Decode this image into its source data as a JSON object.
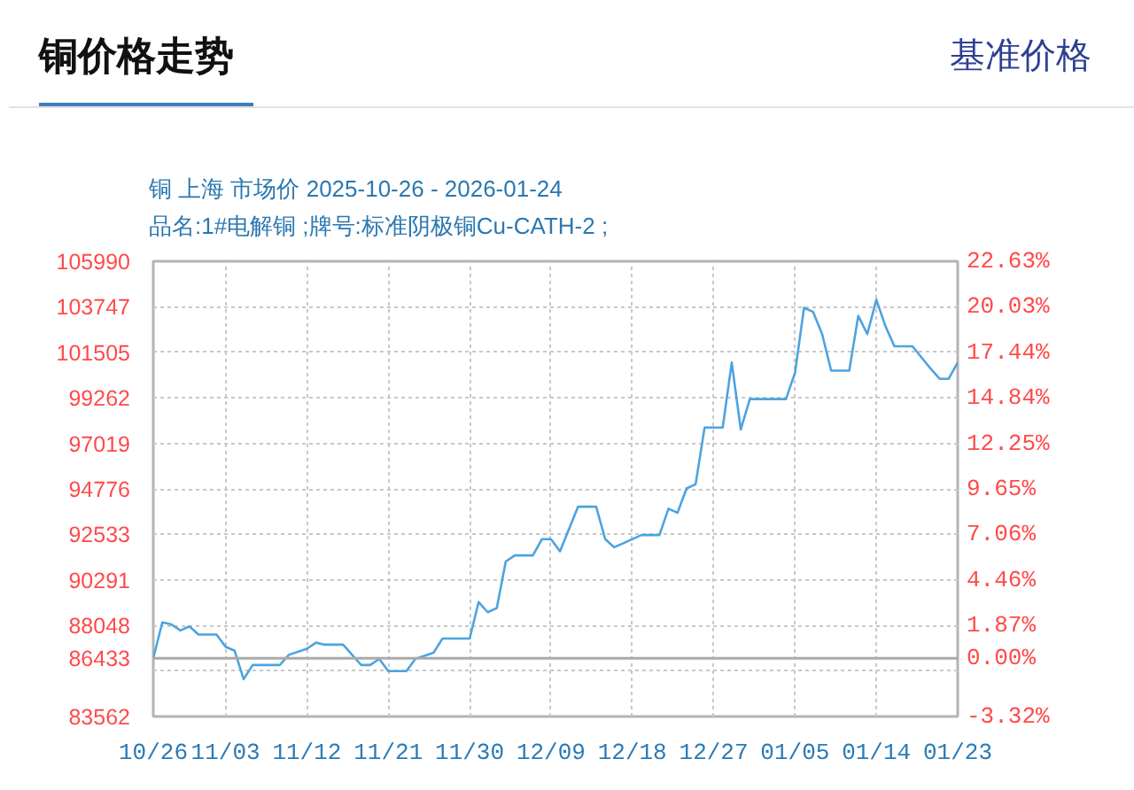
{
  "chart_data": {
    "type": "line",
    "title": "铜价格走势",
    "subtitle": "铜 上海 市场价 2025-10-26 - 2026-01-24\n品名:1#电解铜 ;牌号:标准阴极铜Cu-CATH-2 ;",
    "annotations": [
      "基准价格"
    ],
    "x": [
      "2025-10-26",
      "2025-10-27",
      "2025-10-28",
      "2025-10-29",
      "2025-10-30",
      "2025-10-31",
      "2025-11-02",
      "2025-11-03",
      "2025-11-04",
      "2025-11-05",
      "2025-11-06",
      "2025-11-09",
      "2025-11-10",
      "2025-11-12",
      "2025-11-13",
      "2025-11-14",
      "2025-11-16",
      "2025-11-18",
      "2025-11-19",
      "2025-11-20",
      "2025-11-21",
      "2025-11-23",
      "2025-11-24",
      "2025-11-26",
      "2025-11-27",
      "2025-11-30",
      "2025-12-01",
      "2025-12-02",
      "2025-12-03",
      "2025-12-04",
      "2025-12-05",
      "2025-12-07",
      "2025-12-08",
      "2025-12-09",
      "2025-12-10",
      "2025-12-12",
      "2025-12-14",
      "2025-12-15",
      "2025-12-16",
      "2025-12-17",
      "2025-12-19",
      "2025-12-21",
      "2025-12-22",
      "2025-12-23",
      "2025-12-24",
      "2025-12-25",
      "2025-12-26",
      "2025-12-28",
      "2025-12-29",
      "2025-12-30",
      "2025-12-31",
      "2026-01-04",
      "2026-01-05",
      "2026-01-06",
      "2026-01-07",
      "2026-01-08",
      "2026-01-09",
      "2026-01-11",
      "2026-01-12",
      "2026-01-13",
      "2026-01-14",
      "2026-01-15",
      "2026-01-16",
      "2026-01-18",
      "2026-01-20",
      "2026-01-21",
      "2026-01-22",
      "2026-01-23"
    ],
    "series": [
      {
        "color": "#4da3de",
        "values": [
          86433,
          88200,
          88100,
          87800,
          88000,
          87600,
          87600,
          87000,
          86800,
          85400,
          86100,
          86100,
          86600,
          86900,
          87200,
          87100,
          87100,
          86100,
          86100,
          86400,
          85800,
          85800,
          86400,
          86700,
          87400,
          87400,
          89200,
          88700,
          88900,
          91200,
          91500,
          91500,
          92300,
          92300,
          91700,
          93900,
          93900,
          92300,
          91900,
          92100,
          92500,
          92500,
          93800,
          93600,
          94800,
          95000,
          97800,
          97800,
          101000,
          97700,
          99200,
          99200,
          100500,
          103700,
          103500,
          102400,
          100600,
          100600,
          103300,
          102400,
          104100,
          102800,
          101800,
          101800,
          100700,
          100200,
          100200,
          101000
        ]
      }
    ],
    "xlim": [
      "2025-10-26",
      "2026-01-23"
    ],
    "xticks": [
      {
        "value": "2025-10-26",
        "label": "10/26"
      },
      {
        "value": "2025-11-03",
        "label": "11/03"
      },
      {
        "value": "2025-11-12",
        "label": "11/12"
      },
      {
        "value": "2025-11-21",
        "label": "11/21"
      },
      {
        "value": "2025-11-30",
        "label": "11/30"
      },
      {
        "value": "2025-12-09",
        "label": "12/09"
      },
      {
        "value": "2025-12-18",
        "label": "12/18"
      },
      {
        "value": "2025-12-27",
        "label": "12/27"
      },
      {
        "value": "2026-01-05",
        "label": "01/05"
      },
      {
        "value": "2026-01-14",
        "label": "01/14"
      },
      {
        "value": "2026-01-23",
        "label": "01/23"
      }
    ],
    "ylim": [
      83562,
      105990
    ],
    "yticks": [
      105990,
      103747,
      101505,
      99262,
      97019,
      94776,
      92533,
      90291,
      88048,
      86433,
      {
        "value": 85805,
        "label": null
      },
      83562
    ],
    "y2lim": [
      -3.32,
      22.63
    ],
    "y2ticks": [
      {
        "value": 22.63,
        "label": "22.63%"
      },
      {
        "value": 20.03,
        "label": "20.03%"
      },
      {
        "value": 17.44,
        "label": "17.44%"
      },
      {
        "value": 14.84,
        "label": "14.84%"
      },
      {
        "value": 12.25,
        "label": "12.25%"
      },
      {
        "value": 9.65,
        "label": "9.65%"
      },
      {
        "value": 7.06,
        "label": "7.06%"
      },
      {
        "value": 4.46,
        "label": "4.46%"
      },
      {
        "value": 1.87,
        "label": "1.87%"
      },
      {
        "value": 0,
        "label": "0.00%"
      },
      {
        "value": -3.32,
        "label": "-3.32%"
      }
    ],
    "ref_lines": [
      {
        "axis": "y",
        "value": 86433,
        "color": "#aaaaaa"
      }
    ],
    "grid": true
  }
}
